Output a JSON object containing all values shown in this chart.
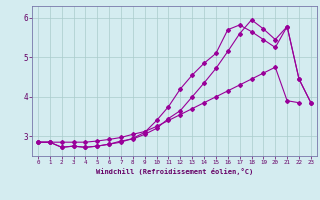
{
  "background_color": "#d4ecf0",
  "line_color": "#990099",
  "grid_color": "#aacccc",
  "xlabel": "Windchill (Refroidissement éolien,°C)",
  "xlabel_color": "#660066",
  "tick_color": "#660066",
  "spine_color": "#7777aa",
  "xlim": [
    -0.5,
    23.5
  ],
  "ylim": [
    2.5,
    6.3
  ],
  "yticks": [
    3,
    4,
    5,
    6
  ],
  "xticks": [
    0,
    1,
    2,
    3,
    4,
    5,
    6,
    7,
    8,
    9,
    10,
    11,
    12,
    13,
    14,
    15,
    16,
    17,
    18,
    19,
    20,
    21,
    22,
    23
  ],
  "line1_x": [
    0,
    1,
    2,
    3,
    4,
    5,
    6,
    7,
    8,
    9,
    10,
    11,
    12,
    13,
    14,
    15,
    16,
    17,
    18,
    19,
    20,
    21,
    22
  ],
  "line1_y": [
    2.85,
    2.85,
    2.85,
    2.85,
    2.85,
    2.88,
    2.92,
    2.97,
    3.05,
    3.12,
    3.25,
    3.4,
    3.55,
    3.7,
    3.85,
    4.0,
    4.15,
    4.3,
    4.45,
    4.6,
    4.75,
    3.9,
    3.85
  ],
  "line2_x": [
    0,
    1,
    2,
    3,
    4,
    5,
    6,
    7,
    8,
    9,
    10,
    11,
    12,
    13,
    14,
    15,
    16,
    17,
    18,
    19,
    20,
    21,
    22,
    23
  ],
  "line2_y": [
    2.85,
    2.85,
    2.72,
    2.75,
    2.72,
    2.75,
    2.8,
    2.85,
    2.95,
    3.1,
    3.4,
    3.75,
    4.2,
    4.55,
    4.85,
    5.1,
    5.7,
    5.82,
    5.65,
    5.45,
    5.25,
    5.78,
    4.45,
    3.85
  ],
  "line3_x": [
    0,
    1,
    2,
    3,
    4,
    5,
    6,
    7,
    8,
    9,
    10,
    11,
    12,
    13,
    14,
    15,
    16,
    17,
    18,
    19,
    20,
    21,
    22,
    23
  ],
  "line3_y": [
    2.85,
    2.85,
    2.72,
    2.75,
    2.72,
    2.75,
    2.8,
    2.88,
    2.93,
    3.05,
    3.2,
    3.45,
    3.65,
    4.0,
    4.35,
    4.72,
    5.15,
    5.6,
    5.95,
    5.72,
    5.45,
    5.78,
    4.45,
    3.85
  ],
  "marker": "D",
  "markersize": 2.0,
  "linewidth": 0.8
}
